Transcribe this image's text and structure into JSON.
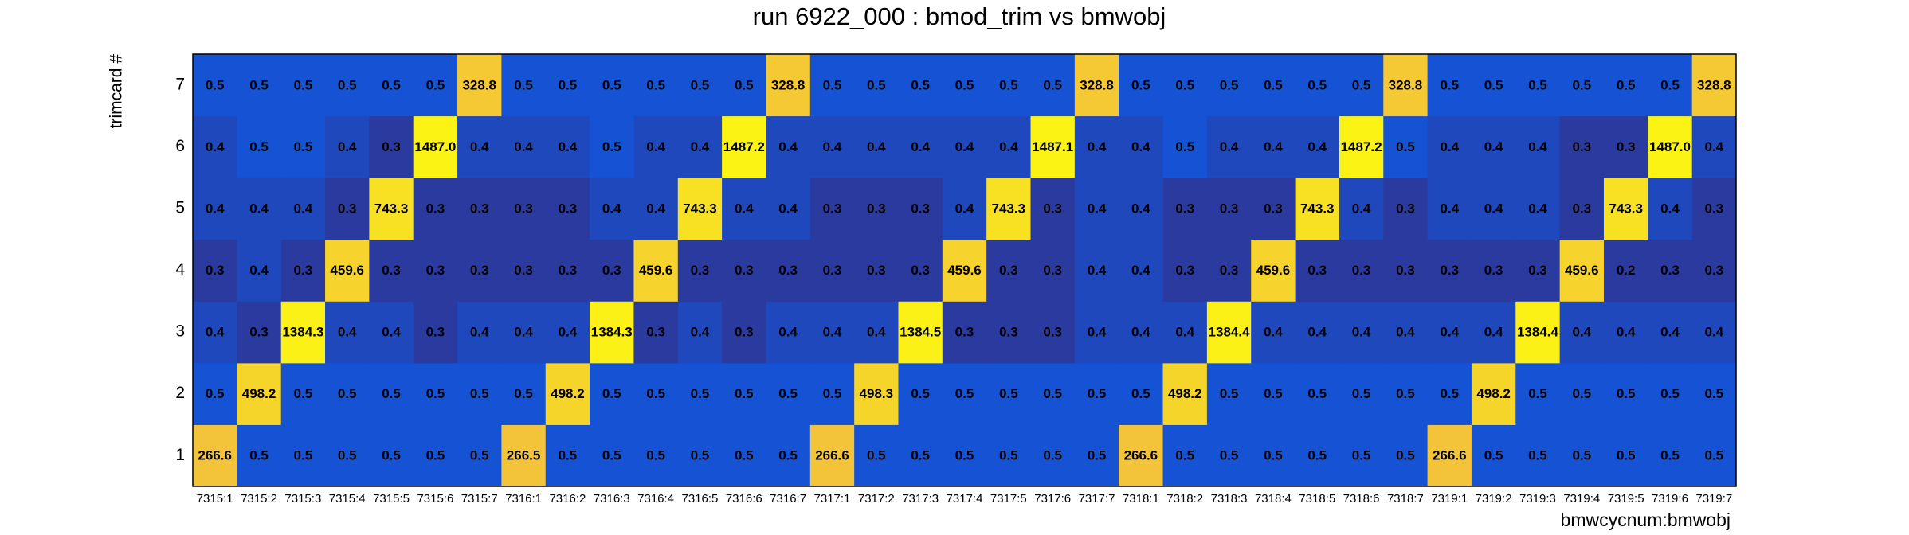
{
  "chart_data": {
    "type": "heatmap",
    "title": "run 6922_000 : bmod_trim vs bmwobj",
    "x_label": "bmwcycnum:bmwobj",
    "y_label": "trimcard #",
    "categories": [
      "7315:1",
      "7315:2",
      "7315:3",
      "7315:4",
      "7315:5",
      "7315:6",
      "7315:7",
      "7316:1",
      "7316:2",
      "7316:3",
      "7316:4",
      "7316:5",
      "7316:6",
      "7316:7",
      "7317:1",
      "7317:2",
      "7317:3",
      "7317:4",
      "7317:5",
      "7317:6",
      "7317:7",
      "7318:1",
      "7318:2",
      "7318:3",
      "7318:4",
      "7318:5",
      "7318:6",
      "7318:7",
      "7319:1",
      "7319:2",
      "7319:3",
      "7319:4",
      "7319:5",
      "7319:6",
      "7319:7"
    ],
    "y_categories": [
      1,
      2,
      3,
      4,
      5,
      6,
      7
    ],
    "color_scale": [
      {
        "value": 0.3,
        "color": "#2b3a9e"
      },
      {
        "value": 0.5,
        "color": "#1652d4"
      },
      {
        "value": 250,
        "color": "#f3c23a"
      },
      {
        "value": 1500,
        "color": "#fbf314"
      }
    ],
    "values": [
      [
        266.6,
        0.5,
        0.5,
        0.5,
        0.5,
        0.5,
        0.5,
        266.5,
        0.5,
        0.5,
        0.5,
        0.5,
        0.5,
        0.5,
        266.6,
        0.5,
        0.5,
        0.5,
        0.5,
        0.5,
        0.5,
        266.6,
        0.5,
        0.5,
        0.5,
        0.5,
        0.5,
        0.5,
        266.6,
        0.5,
        0.5,
        0.5,
        0.5,
        0.5,
        0.5
      ],
      [
        0.5,
        498.2,
        0.5,
        0.5,
        0.5,
        0.5,
        0.5,
        0.5,
        498.2,
        0.5,
        0.5,
        0.5,
        0.5,
        0.5,
        0.5,
        498.3,
        0.5,
        0.5,
        0.5,
        0.5,
        0.5,
        0.5,
        498.2,
        0.5,
        0.5,
        0.5,
        0.5,
        0.5,
        0.5,
        498.2,
        0.5,
        0.5,
        0.5,
        0.5,
        0.5
      ],
      [
        0.4,
        0.3,
        1384.3,
        0.4,
        0.4,
        0.3,
        0.4,
        0.4,
        0.4,
        1384.3,
        0.3,
        0.4,
        0.3,
        0.4,
        0.4,
        0.4,
        1384.5,
        0.3,
        0.3,
        0.3,
        0.4,
        0.4,
        0.4,
        1384.4,
        0.4,
        0.4,
        0.4,
        0.4,
        0.4,
        0.4,
        1384.4,
        0.4,
        0.4,
        0.4,
        0.4
      ],
      [
        0.3,
        0.4,
        0.3,
        459.6,
        0.3,
        0.3,
        0.3,
        0.3,
        0.3,
        0.3,
        459.6,
        0.3,
        0.3,
        0.3,
        0.3,
        0.3,
        0.3,
        459.6,
        0.3,
        0.3,
        0.4,
        0.4,
        0.3,
        0.3,
        459.6,
        0.3,
        0.3,
        0.3,
        0.3,
        0.3,
        0.3,
        459.6,
        0.2,
        0.3,
        0.3
      ],
      [
        0.4,
        0.4,
        0.4,
        0.3,
        743.3,
        0.3,
        0.3,
        0.3,
        0.3,
        0.4,
        0.4,
        743.3,
        0.4,
        0.4,
        0.3,
        0.3,
        0.3,
        0.4,
        743.3,
        0.3,
        0.4,
        0.4,
        0.3,
        0.3,
        0.3,
        743.3,
        0.4,
        0.3,
        0.4,
        0.4,
        0.4,
        0.3,
        743.3,
        0.4,
        0.3
      ],
      [
        0.4,
        0.5,
        0.5,
        0.4,
        0.3,
        1487.0,
        0.4,
        0.4,
        0.4,
        0.5,
        0.4,
        0.4,
        1487.2,
        0.4,
        0.4,
        0.4,
        0.4,
        0.4,
        0.4,
        1487.1,
        0.4,
        0.4,
        0.5,
        0.4,
        0.4,
        0.4,
        1487.2,
        0.5,
        0.4,
        0.4,
        0.4,
        0.3,
        0.3,
        1487.0,
        0.4
      ],
      [
        0.5,
        0.5,
        0.5,
        0.5,
        0.5,
        0.5,
        328.8,
        0.5,
        0.5,
        0.5,
        0.5,
        0.5,
        0.5,
        328.8,
        0.5,
        0.5,
        0.5,
        0.5,
        0.5,
        0.5,
        328.8,
        0.5,
        0.5,
        0.5,
        0.5,
        0.5,
        0.5,
        328.8,
        0.5,
        0.5,
        0.5,
        0.5,
        0.5,
        0.5,
        328.8
      ]
    ],
    "value_labels": [
      [
        "266.6",
        "0.5",
        "0.5",
        "0.5",
        "0.5",
        "0.5",
        "0.5",
        "266.5",
        "0.5",
        "0.5",
        "0.5",
        "0.5",
        "0.5",
        "0.5",
        "266.6",
        "0.5",
        "0.5",
        "0.5",
        "0.5",
        "0.5",
        "0.5",
        "266.6",
        "0.5",
        "0.5",
        "0.5",
        "0.5",
        "0.5",
        "0.5",
        "266.6",
        "0.5",
        "0.5",
        "0.5",
        "0.5",
        "0.5",
        "0.5"
      ],
      [
        "0.5",
        "498.2",
        "0.5",
        "0.5",
        "0.5",
        "0.5",
        "0.5",
        "0.5",
        "498.2",
        "0.5",
        "0.5",
        "0.5",
        "0.5",
        "0.5",
        "0.5",
        "498.3",
        "0.5",
        "0.5",
        "0.5",
        "0.5",
        "0.5",
        "0.5",
        "498.2",
        "0.5",
        "0.5",
        "0.5",
        "0.5",
        "0.5",
        "0.5",
        "498.2",
        "0.5",
        "0.5",
        "0.5",
        "0.5",
        "0.5"
      ],
      [
        "0.4",
        "0.3",
        "1384.3",
        "0.4",
        "0.4",
        "0.3",
        "0.4",
        "0.4",
        "0.4",
        "1384.3",
        "0.3",
        "0.4",
        "0.3",
        "0.4",
        "0.4",
        "0.4",
        "1384.5",
        "0.3",
        "0.3",
        "0.3",
        "0.4",
        "0.4",
        "0.4",
        "1384.4",
        "0.4",
        "0.4",
        "0.4",
        "0.4",
        "0.4",
        "0.4",
        "1384.4",
        "0.4",
        "0.4",
        "0.4",
        "0.4"
      ],
      [
        "0.3",
        "0.4",
        "0.3",
        "459.6",
        "0.3",
        "0.3",
        "0.3",
        "0.3",
        "0.3",
        "0.3",
        "459.6",
        "0.3",
        "0.3",
        "0.3",
        "0.3",
        "0.3",
        "0.3",
        "459.6",
        "0.3",
        "0.3",
        "0.4",
        "0.4",
        "0.3",
        "0.3",
        "459.6",
        "0.3",
        "0.3",
        "0.3",
        "0.3",
        "0.3",
        "0.3",
        "459.6",
        "0.2",
        "0.3",
        "0.3"
      ],
      [
        "0.4",
        "0.4",
        "0.4",
        "0.3",
        "743.3",
        "0.3",
        "0.3",
        "0.3",
        "0.3",
        "0.4",
        "0.4",
        "743.3",
        "0.4",
        "0.4",
        "0.3",
        "0.3",
        "0.3",
        "0.4",
        "743.3",
        "0.3",
        "0.4",
        "0.4",
        "0.3",
        "0.3",
        "0.3",
        "743.3",
        "0.4",
        "0.3",
        "0.4",
        "0.4",
        "0.4",
        "0.3",
        "743.3",
        "0.4",
        "0.3"
      ],
      [
        "0.4",
        "0.5",
        "0.5",
        "0.4",
        "0.3",
        "1487.0",
        "0.4",
        "0.4",
        "0.4",
        "0.5",
        "0.4",
        "0.4",
        "1487.2",
        "0.4",
        "0.4",
        "0.4",
        "0.4",
        "0.4",
        "0.4",
        "1487.1",
        "0.4",
        "0.4",
        "0.5",
        "0.4",
        "0.4",
        "0.4",
        "1487.2",
        "0.5",
        "0.4",
        "0.4",
        "0.4",
        "0.3",
        "0.3",
        "1487.0",
        "0.4"
      ],
      [
        "0.5",
        "0.5",
        "0.5",
        "0.5",
        "0.5",
        "0.5",
        "328.8",
        "0.5",
        "0.5",
        "0.5",
        "0.5",
        "0.5",
        "0.5",
        "328.8",
        "0.5",
        "0.5",
        "0.5",
        "0.5",
        "0.5",
        "0.5",
        "328.8",
        "0.5",
        "0.5",
        "0.5",
        "0.5",
        "0.5",
        "0.5",
        "328.8",
        "0.5",
        "0.5",
        "0.5",
        "0.5",
        "0.5",
        "0.5",
        "328.8"
      ]
    ]
  }
}
